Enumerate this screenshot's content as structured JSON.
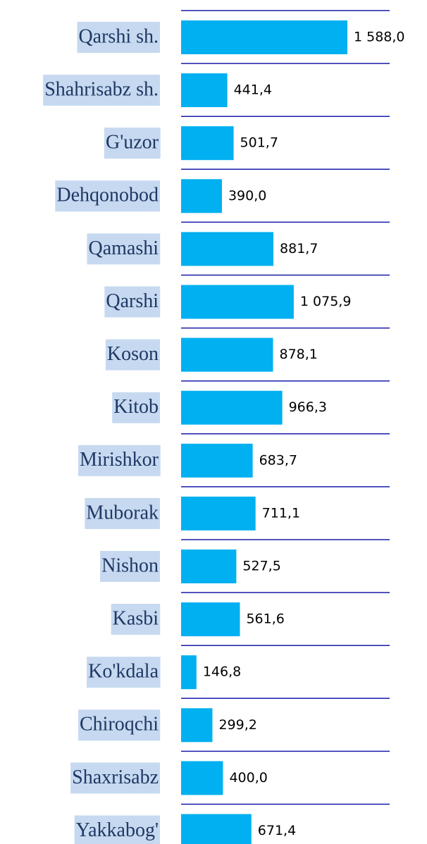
{
  "chart_data": {
    "type": "bar",
    "orientation": "horizontal",
    "categories": [
      "Qarshi sh.",
      "Shahrisabz sh.",
      "G'uzor",
      "Dehqonobod",
      "Qamashi",
      "Qarshi",
      "Koson",
      "Kitob",
      "Mirishkor",
      "Muborak",
      "Nishon",
      "Kasbi",
      "Ko'kdala",
      "Chiroqchi",
      "Shaxrisabz",
      "Yakkabog'"
    ],
    "values": [
      1588.0,
      441.4,
      501.7,
      390.0,
      881.7,
      1075.9,
      878.1,
      966.3,
      683.7,
      711.1,
      527.5,
      561.6,
      146.8,
      299.2,
      400.0,
      671.4
    ],
    "value_labels": [
      "1 588,0",
      "441,4",
      "501,7",
      "390,0",
      "881,7",
      "1 075,9",
      "878,1",
      "966,3",
      "683,7",
      "711,1",
      "527,5",
      "561,6",
      "146,8",
      "299,2",
      "400,0",
      "671,4"
    ],
    "color": "#00b0f0"
  }
}
